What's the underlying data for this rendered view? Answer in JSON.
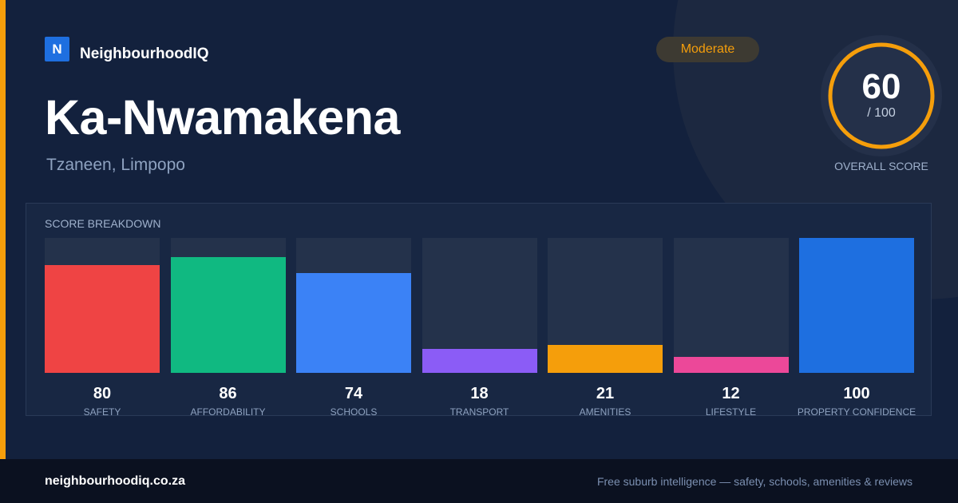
{
  "brand": {
    "logo_letter": "N",
    "name": "NeighbourhoodIQ"
  },
  "suburb": {
    "name": "Ka-Nwamakena",
    "location": "Tzaneen, Limpopo"
  },
  "rating": {
    "label": "Moderate"
  },
  "overall": {
    "score": "60",
    "max": "/ 100",
    "caption": "OVERALL SCORE",
    "fraction": 0.6
  },
  "colors": {
    "accent": "#f59e0b",
    "safety": "#ef4444",
    "affordability": "#10b981",
    "schools": "#3b82f6",
    "transport": "#8b5cf6",
    "amenities": "#f59e0b",
    "lifestyle": "#ec4899",
    "property_confidence": "#1e6fe0"
  },
  "breakdown": {
    "title": "SCORE BREAKDOWN",
    "max": 100,
    "categories": [
      {
        "value": "80",
        "label": "SAFETY",
        "color_key": "safety"
      },
      {
        "value": "86",
        "label": "AFFORDABILITY",
        "color_key": "affordability"
      },
      {
        "value": "74",
        "label": "SCHOOLS",
        "color_key": "schools"
      },
      {
        "value": "18",
        "label": "TRANSPORT",
        "color_key": "transport"
      },
      {
        "value": "21",
        "label": "AMENITIES",
        "color_key": "amenities"
      },
      {
        "value": "12",
        "label": "LIFESTYLE",
        "color_key": "lifestyle"
      },
      {
        "value": "100",
        "label": "PROPERTY CONFIDENCE",
        "color_key": "property_confidence"
      }
    ]
  },
  "footer": {
    "domain": "neighbourhoodiq.co.za",
    "tagline": "Free suburb intelligence — safety, schools, amenities & reviews"
  }
}
